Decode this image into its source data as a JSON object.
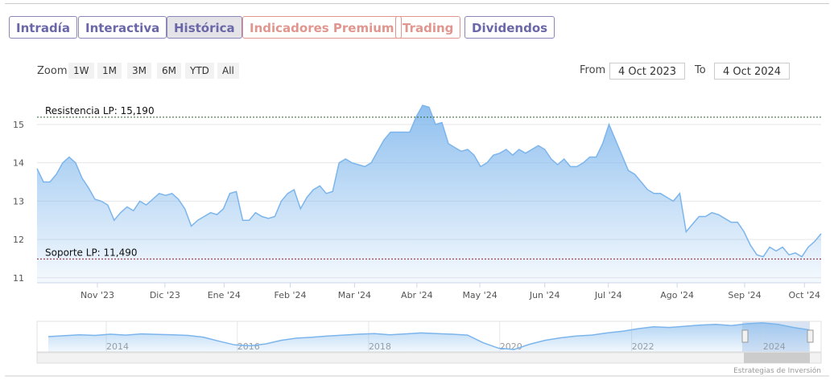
{
  "tabs": [
    "Intradía",
    "Interactiva",
    "Histórica",
    "Indicadores Premium",
    "Trading",
    "Dividendos"
  ],
  "zoom": {
    "label": "Zoom",
    "buttons": [
      "1W",
      "1M",
      "3M",
      "6M",
      "YTD",
      "All"
    ]
  },
  "range": {
    "from_label": "From",
    "from": "4 Oct 2023",
    "to_label": "To",
    "to": "4 Oct 2024"
  },
  "credit": "Estrategias de Inversión",
  "chart_data": {
    "type": "area",
    "color": "#7cb5ec",
    "grid": true,
    "values": [
      13.85,
      13.5,
      13.5,
      13.7,
      14.0,
      14.15,
      14.0,
      13.6,
      13.35,
      13.05,
      13.0,
      12.9,
      12.5,
      12.7,
      12.85,
      12.75,
      13.0,
      12.9,
      13.05,
      13.2,
      13.15,
      13.2,
      13.05,
      12.8,
      12.35,
      12.5,
      12.6,
      12.7,
      12.65,
      12.8,
      13.2,
      13.25,
      12.5,
      12.5,
      12.7,
      12.6,
      12.55,
      12.6,
      13.0,
      13.2,
      13.3,
      12.8,
      13.1,
      13.3,
      13.4,
      13.2,
      13.25,
      14.0,
      14.1,
      14.0,
      13.95,
      13.9,
      14.0,
      14.3,
      14.6,
      14.8,
      14.8,
      14.8,
      14.8,
      15.2,
      15.5,
      15.45,
      15.0,
      15.05,
      14.5,
      14.4,
      14.3,
      14.35,
      14.2,
      13.9,
      14.0,
      14.2,
      14.25,
      14.35,
      14.2,
      14.35,
      14.25,
      14.35,
      14.45,
      14.35,
      14.1,
      13.95,
      14.1,
      13.9,
      13.9,
      14.0,
      14.15,
      14.15,
      14.5,
      15.0,
      14.6,
      14.2,
      13.8,
      13.7,
      13.5,
      13.3,
      13.2,
      13.2,
      13.1,
      13.0,
      13.2,
      12.2,
      12.4,
      12.6,
      12.6,
      12.7,
      12.65,
      12.55,
      12.45,
      12.45,
      12.2,
      11.85,
      11.6,
      11.55,
      11.8,
      11.7,
      11.8,
      11.6,
      11.65,
      11.55,
      11.8,
      11.95,
      12.15
    ],
    "xlim": [
      0,
      122
    ],
    "xticks": [
      {
        "value": 9.4,
        "label": "Nov '23"
      },
      {
        "value": 19.9,
        "label": "Dic '23"
      },
      {
        "value": 29.1,
        "label": "Ene '24"
      },
      {
        "value": 39.4,
        "label": "Feb '24"
      },
      {
        "value": 49.4,
        "label": "Mar '24"
      },
      {
        "value": 59.1,
        "label": "Abr '24"
      },
      {
        "value": 68.9,
        "label": "May '24"
      },
      {
        "value": 79,
        "label": "Jun '24"
      },
      {
        "value": 88.9,
        "label": "Jul '24"
      },
      {
        "value": 99.6,
        "label": "Ago '24"
      },
      {
        "value": 110.1,
        "label": "Sep '24"
      },
      {
        "value": 119.4,
        "label": "Oct '24"
      }
    ],
    "ylim": [
      10.87,
      15.9
    ],
    "yticks": [
      11,
      12,
      13,
      14,
      15
    ],
    "hlines": [
      {
        "value": 15.19,
        "label": "Resistencia LP: 15,190",
        "color": "#2e5e2e"
      },
      {
        "value": 11.49,
        "label": "Soporte LP: 11,490",
        "color": "#8b1e2a"
      }
    ]
  },
  "navigator": {
    "color": "#7cb5ec",
    "values": [
      13.0,
      13.3,
      13.6,
      13.4,
      13.8,
      13.5,
      13.9,
      13.7,
      13.6,
      13.4,
      12.8,
      11.5,
      10.3,
      10.0,
      10.6,
      11.8,
      12.5,
      12.8,
      13.2,
      13.5,
      13.8,
      14.0,
      13.6,
      13.9,
      14.2,
      14.0,
      13.8,
      13.5,
      11.0,
      9.2,
      8.8,
      10.5,
      11.8,
      12.6,
      13.2,
      13.5,
      14.2,
      14.8,
      15.6,
      16.2,
      16.0,
      16.4,
      16.8,
      17.0,
      16.6,
      17.2,
      17.5,
      17.0,
      16.0,
      15.2
    ],
    "xlim": [
      0,
      49
    ],
    "ylim": [
      8,
      18
    ],
    "xticks": [
      {
        "value": 4.46,
        "label": "2014"
      },
      {
        "value": 12.9,
        "label": "2016"
      },
      {
        "value": 21.36,
        "label": "2018"
      },
      {
        "value": 29.8,
        "label": "2020"
      },
      {
        "value": 38.3,
        "label": "2022"
      },
      {
        "value": 46.76,
        "label": "2024"
      }
    ]
  }
}
